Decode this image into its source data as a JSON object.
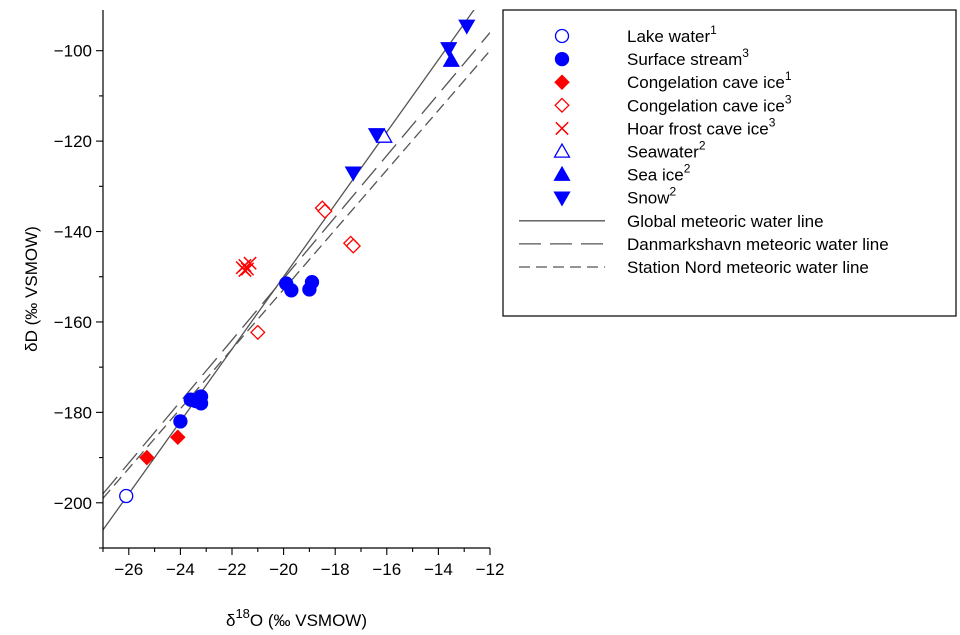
{
  "chart_data": {
    "type": "scatter",
    "xlabel": {
      "pre": "δ",
      "sup": "18",
      "post": "O (‰ VSMOW)"
    },
    "ylabel": "δD (‰ VSMOW)",
    "xlim": [
      -27,
      -12
    ],
    "ylim": [
      -210,
      -91
    ],
    "xticks": [
      -26,
      -24,
      -22,
      -20,
      -18,
      -16,
      -14,
      -12
    ],
    "yticks": [
      -200,
      -180,
      -160,
      -140,
      -120,
      -100
    ],
    "legend_position": "right",
    "series": [
      {
        "name": "Lake water",
        "sup": "1",
        "marker": "circle-open",
        "color": "#0000ff",
        "points": [
          [
            -26.1,
            -198.5
          ]
        ]
      },
      {
        "name": "Surface stream",
        "sup": "3",
        "marker": "circle",
        "color": "#0000ff",
        "points": [
          [
            -24.0,
            -182.0
          ],
          [
            -23.6,
            -177.2
          ],
          [
            -23.4,
            -177.5
          ],
          [
            -23.2,
            -176.5
          ],
          [
            -23.2,
            -178.0
          ],
          [
            -19.9,
            -151.5
          ],
          [
            -19.7,
            -153.0
          ],
          [
            -19.0,
            -152.8
          ],
          [
            -18.9,
            -151.2
          ]
        ]
      },
      {
        "name": "Congelation cave ice",
        "sup": "1",
        "marker": "diamond",
        "color": "#ff0000",
        "points": [
          [
            -25.3,
            -190.0
          ],
          [
            -24.1,
            -185.5
          ]
        ]
      },
      {
        "name": "Congelation cave ice",
        "sup": "3",
        "marker": "diamond-open",
        "color": "#ff0000",
        "points": [
          [
            -21.0,
            -162.3
          ],
          [
            -18.5,
            -134.8
          ],
          [
            -18.4,
            -135.5
          ],
          [
            -17.4,
            -142.6
          ],
          [
            -17.3,
            -143.2
          ]
        ]
      },
      {
        "name": "Hoar frost cave ice",
        "sup": "3",
        "marker": "cross",
        "color": "#ff0000",
        "points": [
          [
            -21.6,
            -148.0
          ],
          [
            -21.5,
            -147.5
          ],
          [
            -21.4,
            -148.3
          ],
          [
            -21.3,
            -147.0
          ],
          [
            -21.5,
            -148.6
          ]
        ]
      },
      {
        "name": "Seawater",
        "sup": "2",
        "marker": "triangle-up-open",
        "color": "#0000ff",
        "points": [
          [
            -16.1,
            -119.0
          ]
        ]
      },
      {
        "name": "Sea ice",
        "sup": "2",
        "marker": "triangle-up",
        "color": "#0000ff",
        "points": [
          [
            -13.5,
            -102.2
          ]
        ]
      },
      {
        "name": "Snow",
        "sup": "2",
        "marker": "triangle-down",
        "color": "#0000ff",
        "points": [
          [
            -16.4,
            -118.5
          ],
          [
            -17.3,
            -127.0
          ],
          [
            -13.6,
            -99.5
          ],
          [
            -12.9,
            -94.5
          ]
        ]
      }
    ],
    "lines": [
      {
        "name": "Global meteoric water line",
        "style": "solid",
        "color": "#555555",
        "points": [
          [
            -27,
            -206
          ],
          [
            -12,
            -86
          ]
        ]
      },
      {
        "name": "Danmarkshavn meteoric water line",
        "style": "long-dash",
        "color": "#555555",
        "points": [
          [
            -27,
            -198
          ],
          [
            -12,
            -96
          ]
        ]
      },
      {
        "name": "Station Nord meteoric water line",
        "style": "short-dash",
        "color": "#555555",
        "points": [
          [
            -27,
            -199
          ],
          [
            -12,
            -100
          ]
        ]
      }
    ]
  }
}
